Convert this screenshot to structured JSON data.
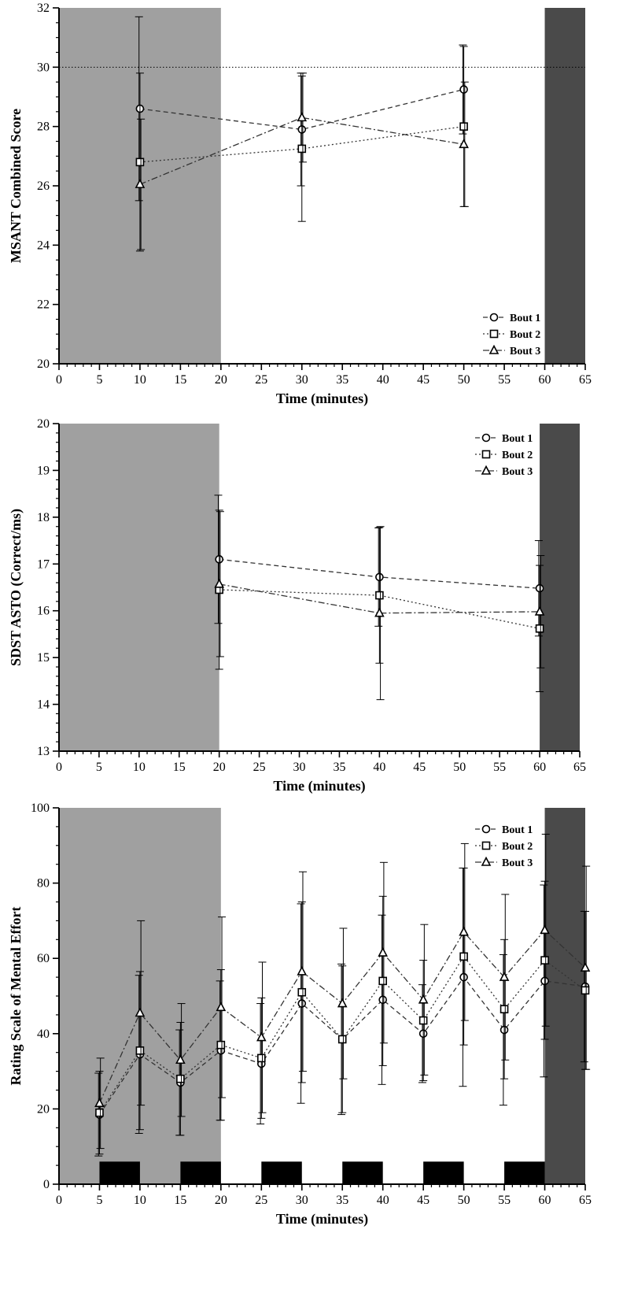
{
  "chart_data": [
    {
      "type": "line",
      "xlabel": "Time (minutes)",
      "ylabel": "MSANT Combined Score",
      "xlim": [
        0,
        65
      ],
      "ylim": [
        20,
        32
      ],
      "xticks": [
        0,
        5,
        10,
        15,
        20,
        25,
        30,
        35,
        40,
        45,
        50,
        55,
        60,
        65
      ],
      "yticks": [
        20,
        22,
        24,
        26,
        28,
        30,
        32
      ],
      "reference_line": 30,
      "shaded_regions": [
        {
          "from": 0,
          "to": 20,
          "color": "#a0a0a0"
        },
        {
          "from": 60,
          "to": 65,
          "color": "#4a4a4a"
        }
      ],
      "legend_position": "bottom-right",
      "series": [
        {
          "name": "Bout 1",
          "marker": "circle",
          "dash": "6,4",
          "x": [
            10,
            30,
            50
          ],
          "values": [
            28.6,
            27.9,
            29.25
          ],
          "err": [
            3.1,
            1.9,
            1.5
          ]
        },
        {
          "name": "Bout 2",
          "marker": "square",
          "dash": "2,3",
          "x": [
            10,
            30,
            50
          ],
          "values": [
            26.8,
            27.25,
            28.0
          ],
          "err": [
            3.0,
            2.45,
            2.7
          ]
        },
        {
          "name": "Bout 3",
          "marker": "triangle",
          "dash": "8,3,2,3",
          "x": [
            10,
            30,
            50
          ],
          "values": [
            26.05,
            28.3,
            27.4
          ],
          "err": [
            2.2,
            1.5,
            2.1
          ]
        }
      ]
    },
    {
      "type": "line",
      "xlabel": "Time (minutes)",
      "ylabel": "SDST ASTO (Correct/ms)",
      "xlim": [
        0,
        65
      ],
      "ylim": [
        13,
        20
      ],
      "xticks": [
        0,
        5,
        10,
        15,
        20,
        25,
        30,
        35,
        40,
        45,
        50,
        55,
        60,
        65
      ],
      "yticks": [
        13,
        14,
        15,
        16,
        17,
        18,
        19,
        20
      ],
      "shaded_regions": [
        {
          "from": 0,
          "to": 20,
          "color": "#a0a0a0"
        },
        {
          "from": 60,
          "to": 65,
          "color": "#4a4a4a"
        }
      ],
      "legend_position": "top-right",
      "series": [
        {
          "name": "Bout 1",
          "marker": "circle",
          "dash": "6,4",
          "x": [
            20,
            40,
            60
          ],
          "values": [
            17.1,
            16.72,
            16.48
          ],
          "err": [
            1.37,
            1.05,
            1.02
          ]
        },
        {
          "name": "Bout 2",
          "marker": "square",
          "dash": "2,3",
          "x": [
            20,
            40,
            60
          ],
          "values": [
            16.45,
            16.33,
            15.62
          ],
          "err": [
            1.7,
            1.45,
            1.35
          ]
        },
        {
          "name": "Bout 3",
          "marker": "triangle",
          "dash": "8,3,2,3",
          "x": [
            20,
            40,
            60
          ],
          "values": [
            16.57,
            15.95,
            15.98
          ],
          "err": [
            1.55,
            1.85,
            1.2
          ]
        }
      ]
    },
    {
      "type": "line",
      "xlabel": "Time (minutes)",
      "ylabel": "Rating Scale of Mental Effort",
      "xlim": [
        0,
        65
      ],
      "ylim": [
        0,
        100
      ],
      "xticks": [
        0,
        5,
        10,
        15,
        20,
        25,
        30,
        35,
        40,
        45,
        50,
        55,
        60,
        65
      ],
      "yticks": [
        0,
        20,
        40,
        60,
        80,
        100
      ],
      "shaded_regions": [
        {
          "from": 0,
          "to": 20,
          "color": "#a0a0a0"
        },
        {
          "from": 60,
          "to": 65,
          "color": "#4a4a4a"
        }
      ],
      "task_blocks": [
        [
          5,
          10
        ],
        [
          15,
          20
        ],
        [
          25,
          30
        ],
        [
          35,
          40
        ],
        [
          45,
          50
        ],
        [
          55,
          60
        ]
      ],
      "task_block_height": 6,
      "legend_position": "bottom-right",
      "series": [
        {
          "name": "Bout 1",
          "marker": "circle",
          "dash": "6,4",
          "x": [
            5,
            10,
            15,
            20,
            25,
            30,
            35,
            40,
            45,
            50,
            55,
            60,
            65
          ],
          "values": [
            18.5,
            34.5,
            27,
            35.5,
            32,
            48,
            38.5,
            49,
            40,
            55,
            41,
            54,
            52.5
          ],
          "err": [
            11,
            21,
            14,
            18.5,
            16,
            26.5,
            20,
            22.5,
            13,
            29,
            20,
            25.5,
            20
          ]
        },
        {
          "name": "Bout 2",
          "marker": "square",
          "dash": "2,3",
          "x": [
            5,
            10,
            15,
            20,
            25,
            30,
            35,
            40,
            45,
            50,
            55,
            60,
            65
          ],
          "values": [
            19,
            35.5,
            28,
            37,
            33.5,
            51,
            38.5,
            54,
            43.5,
            60.5,
            46.5,
            59.5,
            51.5
          ],
          "err": [
            11,
            21,
            15,
            20,
            16,
            24,
            19.5,
            22.5,
            16,
            23.5,
            18.5,
            21,
            21
          ]
        },
        {
          "name": "Bout 3",
          "marker": "triangle",
          "dash": "8,3,2,3",
          "x": [
            5,
            10,
            15,
            20,
            25,
            30,
            35,
            40,
            45,
            50,
            55,
            60,
            65
          ],
          "values": [
            21.5,
            45.5,
            33,
            47,
            39,
            56.5,
            48,
            61.5,
            49,
            67,
            55,
            67.5,
            57.5
          ],
          "err": [
            12,
            24.5,
            15,
            24,
            20,
            26.5,
            20,
            24,
            20,
            23.5,
            22,
            25.5,
            27
          ]
        }
      ]
    }
  ]
}
